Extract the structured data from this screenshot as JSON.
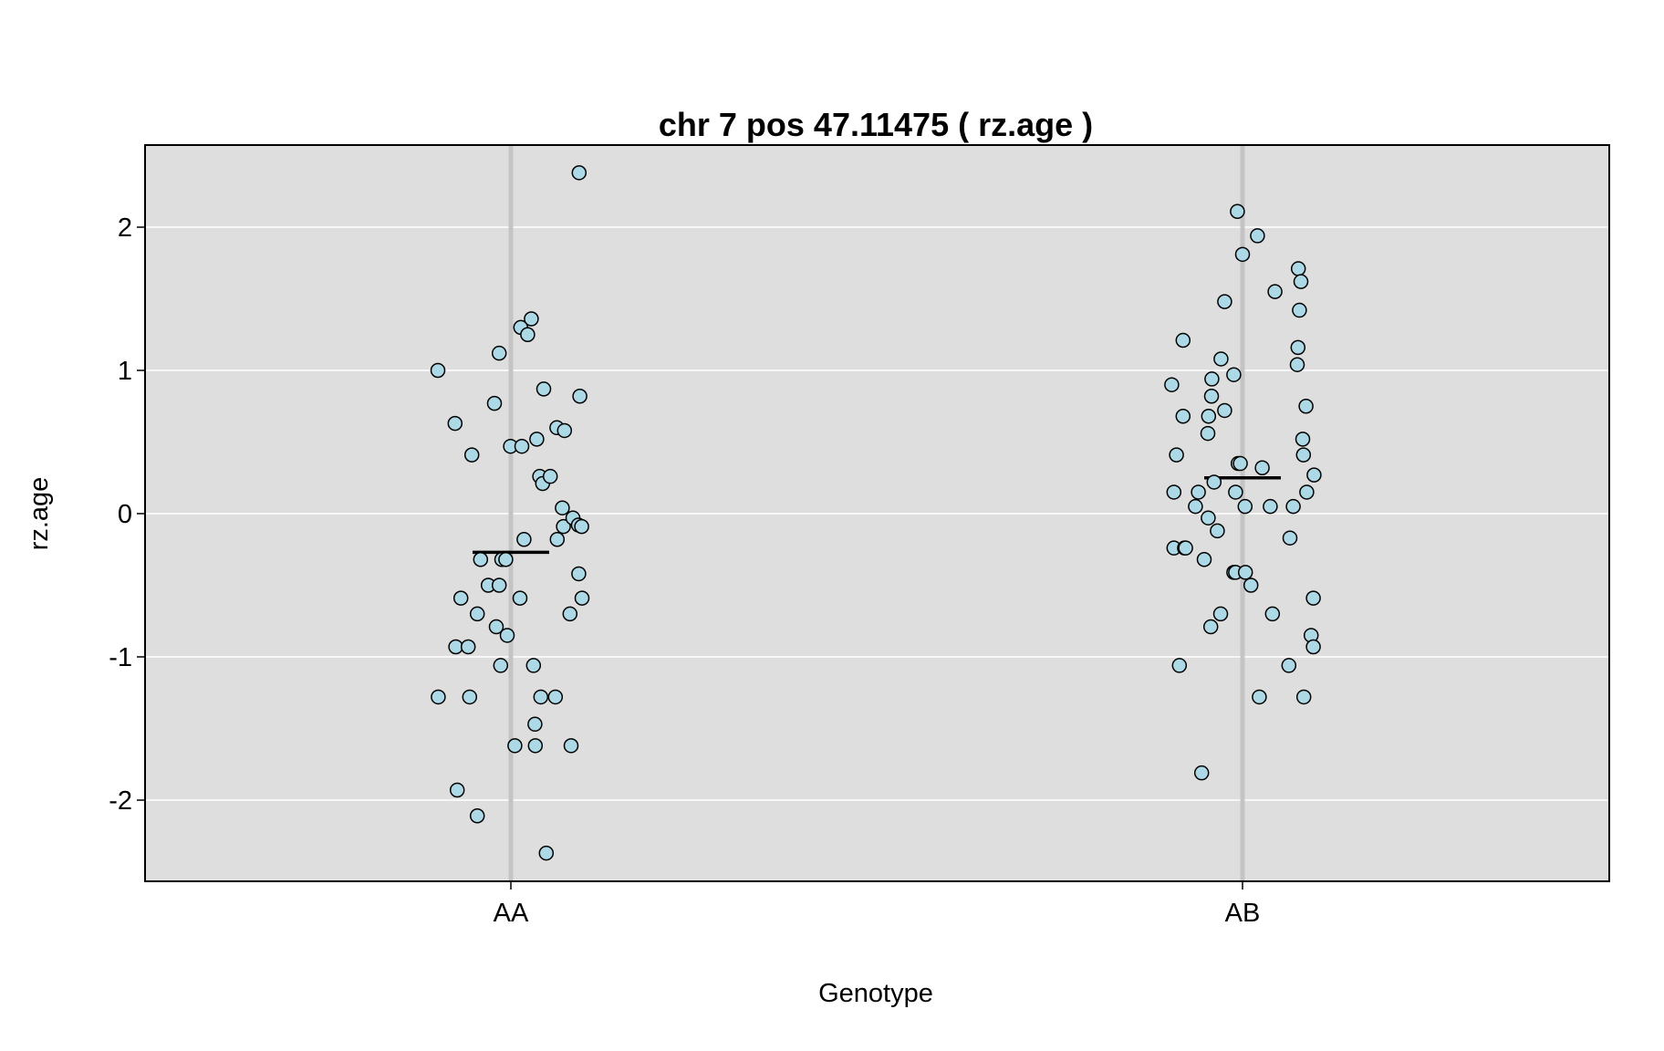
{
  "chart_data": {
    "type": "scatter",
    "title": "chr 7 pos 47.11475 ( rz.age )",
    "xlabel": "Genotype",
    "ylabel": "rz.age",
    "categories": [
      "AA",
      "AB"
    ],
    "ylim": [
      -2.57,
      2.57
    ],
    "yticks": [
      -2,
      -1,
      0,
      1,
      2
    ],
    "ytick_labels": [
      "-2",
      "-1",
      "0",
      "1",
      "2"
    ],
    "grid": true,
    "colors": {
      "panel_background": "#dedede",
      "gridline": "#ffffff",
      "category_line": "#c4c4c4",
      "point_fill": "#add8e6",
      "point_stroke": "#000000",
      "mean_line": "#000000"
    },
    "means": [
      {
        "category": "AA",
        "value": -0.27
      },
      {
        "category": "AB",
        "value": 0.25
      }
    ],
    "series": [
      {
        "category": "AA",
        "points": [
          {
            "x": -0.2,
            "y": 1.0
          },
          {
            "x": -0.153,
            "y": 0.63
          },
          {
            "x": -0.107,
            "y": 0.41
          },
          {
            "x": -0.045,
            "y": 0.77
          },
          {
            "x": -0.032,
            "y": 1.12
          },
          {
            "x": -0.001,
            "y": 0.47
          },
          {
            "x": 0.027,
            "y": 1.3
          },
          {
            "x": 0.03,
            "y": 0.47
          },
          {
            "x": 0.046,
            "y": 1.25
          },
          {
            "x": 0.056,
            "y": 1.36
          },
          {
            "x": 0.071,
            "y": 0.52
          },
          {
            "x": 0.09,
            "y": 0.87
          },
          {
            "x": 0.079,
            "y": 0.26
          },
          {
            "x": 0.087,
            "y": 0.21
          },
          {
            "x": 0.108,
            "y": 0.26
          },
          {
            "x": 0.126,
            "y": 0.6
          },
          {
            "x": 0.147,
            "y": 0.58
          },
          {
            "x": 0.189,
            "y": 0.82
          },
          {
            "x": 0.141,
            "y": 0.04
          },
          {
            "x": 0.144,
            "y": -0.09
          },
          {
            "x": 0.127,
            "y": -0.18
          },
          {
            "x": 0.17,
            "y": -0.03
          },
          {
            "x": 0.185,
            "y": -0.08
          },
          {
            "x": 0.194,
            "y": -0.09
          },
          {
            "x": 0.036,
            "y": -0.18
          },
          {
            "x": -0.083,
            "y": -0.32
          },
          {
            "x": -0.062,
            "y": -0.5
          },
          {
            "x": -0.032,
            "y": -0.5
          },
          {
            "x": -0.025,
            "y": -0.32
          },
          {
            "x": -0.014,
            "y": -0.32
          },
          {
            "x": 0.186,
            "y": -0.42
          },
          {
            "x": -0.137,
            "y": -0.59
          },
          {
            "x": -0.092,
            "y": -0.7
          },
          {
            "x": -0.04,
            "y": -0.79
          },
          {
            "x": 0.025,
            "y": -0.59
          },
          {
            "x": 0.162,
            "y": -0.7
          },
          {
            "x": 0.195,
            "y": -0.59
          },
          {
            "x": -0.151,
            "y": -0.93
          },
          {
            "x": -0.117,
            "y": -0.93
          },
          {
            "x": -0.01,
            "y": -0.85
          },
          {
            "x": -0.028,
            "y": -1.06
          },
          {
            "x": 0.062,
            "y": -1.06
          },
          {
            "x": -0.199,
            "y": -1.28
          },
          {
            "x": -0.113,
            "y": -1.28
          },
          {
            "x": 0.082,
            "y": -1.28
          },
          {
            "x": 0.122,
            "y": -1.28
          },
          {
            "x": 0.066,
            "y": -1.47
          },
          {
            "x": 0.011,
            "y": -1.62
          },
          {
            "x": 0.067,
            "y": -1.62
          },
          {
            "x": 0.165,
            "y": -1.62
          },
          {
            "x": -0.147,
            "y": -1.93
          },
          {
            "x": -0.092,
            "y": -2.11
          },
          {
            "x": 0.097,
            "y": -2.37
          },
          {
            "x": 0.187,
            "y": 2.38
          }
        ]
      },
      {
        "category": "AB",
        "points": [
          {
            "x": -0.014,
            "y": 2.11
          },
          {
            "x": 0.041,
            "y": 1.94
          },
          {
            "x": 0.0,
            "y": 1.81
          },
          {
            "x": 0.153,
            "y": 1.71
          },
          {
            "x": 0.16,
            "y": 1.62
          },
          {
            "x": 0.089,
            "y": 1.55
          },
          {
            "x": -0.049,
            "y": 1.48
          },
          {
            "x": 0.156,
            "y": 1.42
          },
          {
            "x": -0.163,
            "y": 1.21
          },
          {
            "x": 0.152,
            "y": 1.16
          },
          {
            "x": -0.059,
            "y": 1.08
          },
          {
            "x": 0.15,
            "y": 1.04
          },
          {
            "x": -0.024,
            "y": 0.97
          },
          {
            "x": -0.084,
            "y": 0.94
          },
          {
            "x": -0.194,
            "y": 0.9
          },
          {
            "x": -0.085,
            "y": 0.82
          },
          {
            "x": 0.174,
            "y": 0.75
          },
          {
            "x": -0.049,
            "y": 0.72
          },
          {
            "x": -0.163,
            "y": 0.68
          },
          {
            "x": -0.093,
            "y": 0.68
          },
          {
            "x": -0.095,
            "y": 0.56
          },
          {
            "x": 0.165,
            "y": 0.52
          },
          {
            "x": 0.167,
            "y": 0.41
          },
          {
            "x": -0.181,
            "y": 0.41
          },
          {
            "x": -0.012,
            "y": 0.35
          },
          {
            "x": -0.006,
            "y": 0.35
          },
          {
            "x": 0.054,
            "y": 0.32
          },
          {
            "x": 0.196,
            "y": 0.27
          },
          {
            "x": -0.078,
            "y": 0.22
          },
          {
            "x": -0.188,
            "y": 0.15
          },
          {
            "x": -0.121,
            "y": 0.15
          },
          {
            "x": -0.019,
            "y": 0.15
          },
          {
            "x": 0.176,
            "y": 0.15
          },
          {
            "x": -0.129,
            "y": 0.05
          },
          {
            "x": 0.007,
            "y": 0.05
          },
          {
            "x": 0.076,
            "y": 0.05
          },
          {
            "x": 0.139,
            "y": 0.05
          },
          {
            "x": -0.094,
            "y": -0.03
          },
          {
            "x": -0.069,
            "y": -0.12
          },
          {
            "x": 0.13,
            "y": -0.17
          },
          {
            "x": -0.188,
            "y": -0.24
          },
          {
            "x": -0.159,
            "y": -0.24
          },
          {
            "x": -0.156,
            "y": -0.24
          },
          {
            "x": -0.105,
            "y": -0.32
          },
          {
            "x": -0.024,
            "y": -0.41
          },
          {
            "x": -0.019,
            "y": -0.41
          },
          {
            "x": 0.008,
            "y": -0.41
          },
          {
            "x": 0.023,
            "y": -0.5
          },
          {
            "x": 0.082,
            "y": -0.7
          },
          {
            "x": -0.06,
            "y": -0.7
          },
          {
            "x": -0.087,
            "y": -0.79
          },
          {
            "x": 0.194,
            "y": -0.59
          },
          {
            "x": 0.188,
            "y": -0.85
          },
          {
            "x": 0.194,
            "y": -0.93
          },
          {
            "x": -0.173,
            "y": -1.06
          },
          {
            "x": 0.127,
            "y": -1.06
          },
          {
            "x": 0.046,
            "y": -1.28
          },
          {
            "x": 0.168,
            "y": -1.28
          },
          {
            "x": -0.112,
            "y": -1.81
          }
        ]
      }
    ]
  }
}
